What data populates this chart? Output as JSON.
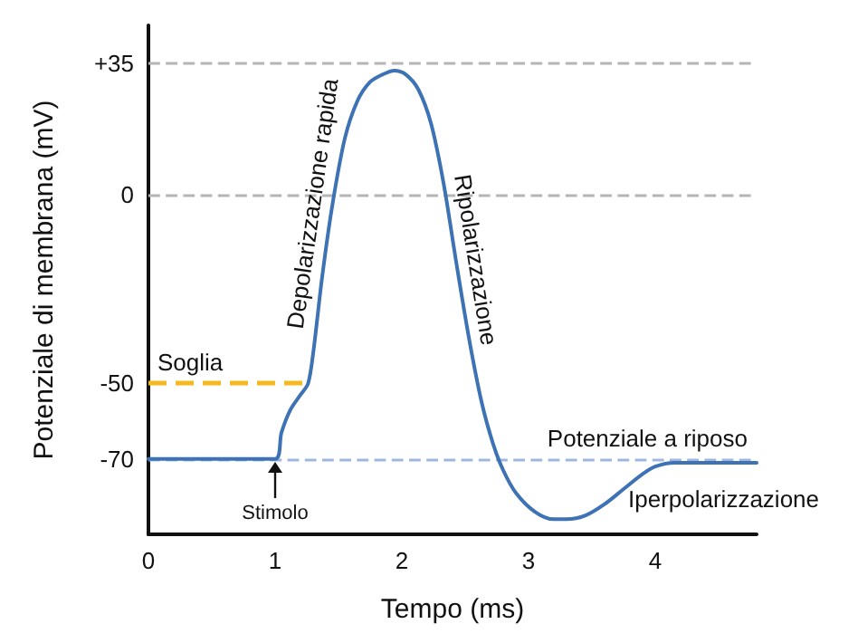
{
  "chart_data": {
    "type": "line",
    "xlabel": "Tempo (ms)",
    "ylabel": "Potenziale di membrana (mV)",
    "x": [
      0,
      1,
      1.05,
      1.12,
      1.2,
      1.26,
      1.3,
      1.37,
      1.45,
      1.55,
      1.65,
      1.75,
      1.85,
      1.94,
      2.03,
      2.13,
      2.23,
      2.33,
      2.43,
      2.53,
      2.63,
      2.72,
      2.8,
      2.9,
      3.05,
      3.2,
      3.3,
      3.45,
      3.6,
      3.75,
      3.9,
      4.0,
      4.15,
      4.8
    ],
    "series": [
      {
        "color": "#3d72b4",
        "values": [
          -70,
          -70,
          -63,
          -57,
          -53,
          -50,
          -42,
          -22,
          -3,
          15,
          25,
          30,
          32,
          33,
          32,
          28,
          19,
          3,
          -18,
          -38,
          -55,
          -66,
          -73,
          -79,
          -84,
          -86,
          -86,
          -85,
          -82,
          -78,
          -74,
          -72,
          -71,
          -71
        ]
      }
    ],
    "xlim": [
      0,
      4.8
    ],
    "xticks": [
      0,
      1,
      2,
      3,
      4
    ],
    "ylim": [
      -90,
      45
    ],
    "yticks": [
      {
        "value": 35,
        "label": "+35"
      },
      0,
      -50,
      -70
    ],
    "marker": "none",
    "line_style": "solid",
    "ref_lines": [
      {
        "axis": "y",
        "value": 35,
        "color": "#b5b5b5",
        "line_style": "dashed"
      },
      {
        "axis": "y",
        "value": 0,
        "color": "#b5b5b5",
        "line_style": "dashed"
      },
      {
        "axis": "y",
        "value": -50,
        "label": "Soglia",
        "color": "#f5b81f",
        "line_style": "dashed"
      },
      {
        "axis": "y",
        "value": -70,
        "label": "Potenziale a riposo",
        "color": "#9fb7de",
        "line_style": "dashed"
      }
    ],
    "annotations": [
      {
        "text": "Depolarizzazione rapida",
        "x": 1.45,
        "y": -3
      },
      {
        "text": "Ripolarizzazione",
        "x": 2.43,
        "y": -18
      },
      {
        "text": "Stimolo",
        "x": 1,
        "y": -70
      },
      {
        "text": "Iperpolarizzazione",
        "x": 3.9,
        "y": -74
      }
    ]
  }
}
